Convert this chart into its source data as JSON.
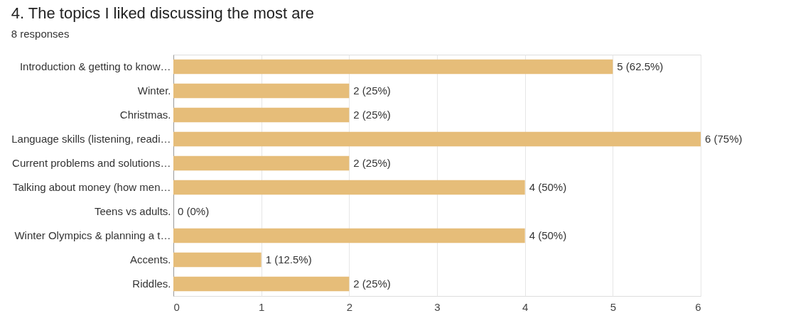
{
  "chart_data": {
    "type": "bar",
    "orientation": "horizontal",
    "title": "4. The topics I liked discussing the most are",
    "subtitle": "8 responses",
    "categories": [
      "Introduction & getting to know…",
      "Winter.",
      "Christmas.",
      "Language skills (listening, readi…",
      "Current problems and solutions…",
      "Talking about money (how men…",
      "Teens vs adults.",
      "Winter Olympics & planning a t…",
      "Accents.",
      "Riddles."
    ],
    "values": [
      5,
      2,
      2,
      6,
      2,
      4,
      0,
      4,
      1,
      2
    ],
    "value_labels": [
      "5 (62.5%)",
      "2 (25%)",
      "2 (25%)",
      "6 (75%)",
      "2 (25%)",
      "4 (50%)",
      "0 (0%)",
      "4 (50%)",
      "1 (12.5%)",
      "2 (25%)"
    ],
    "color": "#e6bd79",
    "xlim": [
      0,
      6
    ],
    "xticks": [
      0,
      1,
      2,
      3,
      4,
      5,
      6
    ],
    "grid": "x",
    "legend": false
  }
}
